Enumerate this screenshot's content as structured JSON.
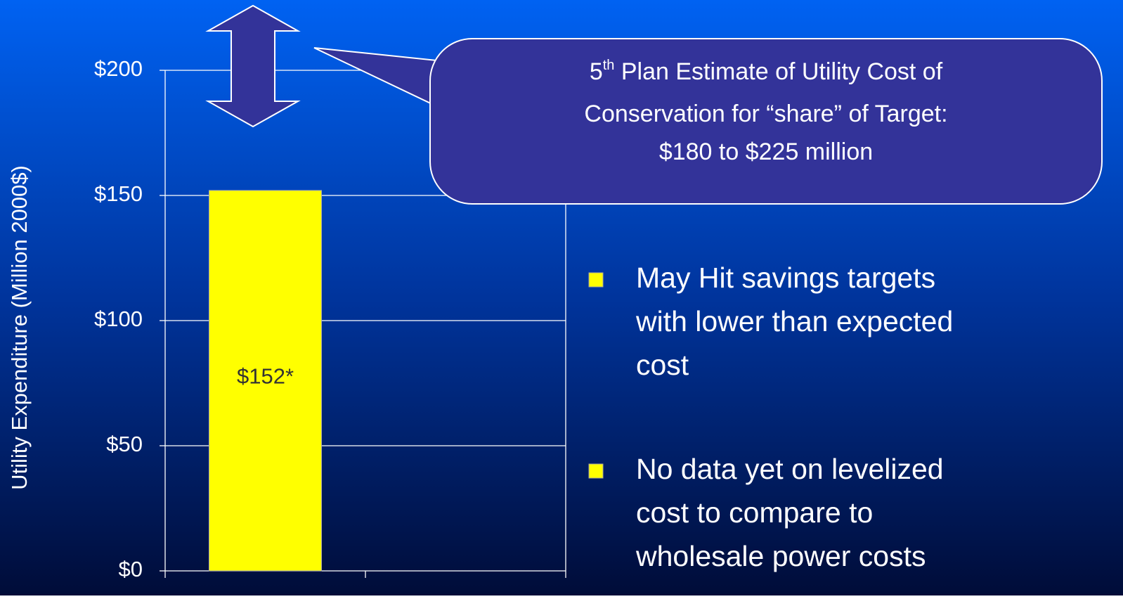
{
  "chart_data": {
    "type": "bar",
    "y_axis_label": "Utility Expenditure (Million 2000$)",
    "categories": [
      null,
      null
    ],
    "values": [
      152,
      null
    ],
    "value_labels": [
      "$152*",
      null
    ],
    "color": "#ffff00",
    "ylim": [
      0,
      200
    ],
    "yticks": [
      {
        "value": 0,
        "label": "$0"
      },
      {
        "value": 50,
        "label": "$50"
      },
      {
        "value": 100,
        "label": "$100"
      },
      {
        "value": 150,
        "label": "$150"
      },
      {
        "value": 200,
        "label": "$200"
      }
    ],
    "grid": true
  },
  "callout": {
    "number": "5",
    "superscript": "th",
    "lines": [
      " Plan Estimate of Utility Cost of",
      "Conservation for “share” of Target:",
      "$180 to $225 million"
    ]
  },
  "bullets": [
    {
      "lines": [
        "May Hit savings targets",
        "with lower than expected",
        "cost"
      ]
    },
    {
      "lines": [
        "No data yet on levelized",
        "cost to compare to",
        "wholesale power costs"
      ]
    }
  ]
}
